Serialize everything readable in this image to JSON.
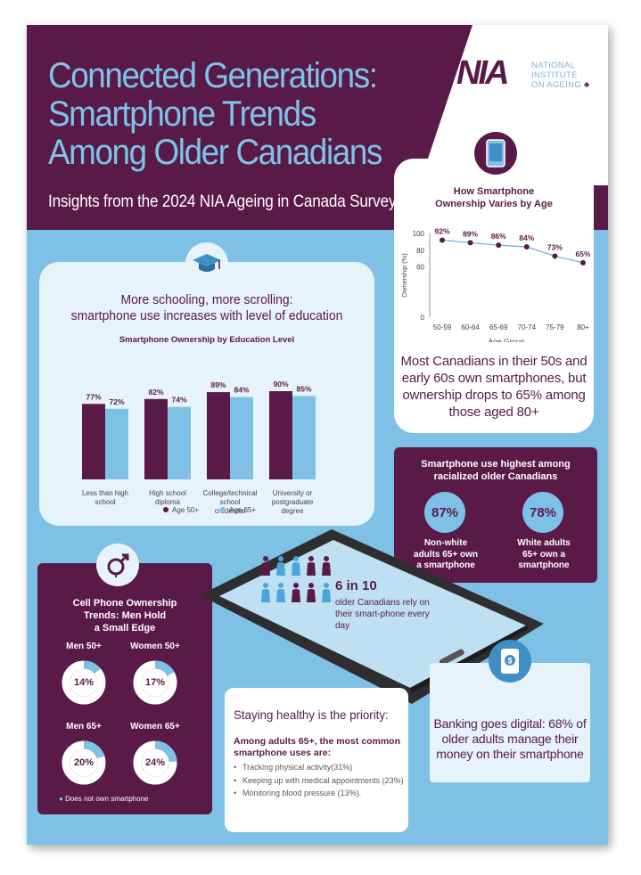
{
  "header": {
    "title_lines": [
      "Connected Generations:",
      "Smartphone Trends",
      "Among Older Canadians"
    ],
    "subtitle": "Insights from the 2024 NIA Ageing in Canada Survey",
    "logo_mark": "NIA",
    "logo_text_lines": [
      "NATIONAL",
      "INSTITUTE",
      "ON AGEING"
    ]
  },
  "colors": {
    "purple": "#5a1a48",
    "light_blue": "#7fc1e6",
    "accent_blue": "#3f8ec5",
    "title_blue": "#7cc4ea"
  },
  "age_section": {
    "icon": "smartphone-icon",
    "title_lines": [
      "How Smartphone",
      "Ownership Varies by Age"
    ],
    "summary": "Most Canadians in their 50s and early 60s own smartphones, but ownership drops to 65% among those aged 80+"
  },
  "education_section": {
    "icon": "graduation-cap-icon",
    "heading_lines": [
      "More schooling, more scrolling:",
      "smartphone use increases with level of education"
    ],
    "chart_title": "Smartphone Ownership by Education Level"
  },
  "chart_data": [
    {
      "type": "line",
      "title": "How Smartphone Ownership Varies by Age",
      "xlabel": "Age Group",
      "ylabel": "Ownership (%)",
      "categories": [
        "50-59",
        "60-64",
        "65-69",
        "70-74",
        "75-79",
        "80+"
      ],
      "values": [
        92,
        89,
        86,
        84,
        73,
        65
      ],
      "data_labels": [
        "92%",
        "89%",
        "86%",
        "84%",
        "73%",
        "65%"
      ],
      "yticks": [
        0,
        60,
        80,
        100
      ],
      "ylim": [
        0,
        100
      ]
    },
    {
      "type": "bar",
      "title": "Smartphone Ownership by Education Level",
      "categories": [
        "Less than high school",
        "High school diploma",
        "College/technical school credential",
        "University or postgraduate degree"
      ],
      "series": [
        {
          "name": "Age 50+",
          "values": [
            77,
            82,
            89,
            90
          ],
          "labels": [
            "77%",
            "82%",
            "89%",
            "90%"
          ],
          "color": "#5a1a48"
        },
        {
          "name": "Age 65+",
          "values": [
            72,
            74,
            84,
            85
          ],
          "labels": [
            "72%",
            "74%",
            "84%",
            "85%"
          ],
          "color": "#7fc1e6"
        }
      ],
      "ylim": [
        0,
        100
      ],
      "legend": "bottom"
    },
    {
      "type": "pie",
      "title": "Cell Phone Ownership Trends: Men Hold a Small Edge",
      "groups": [
        {
          "label": "Men 50+",
          "value": 14,
          "text": "14%"
        },
        {
          "label": "Women 50+",
          "value": 17,
          "text": "17%"
        },
        {
          "label": "Men 65+",
          "value": 20,
          "text": "20%"
        },
        {
          "label": "Women 65+",
          "value": 24,
          "text": "24%"
        }
      ],
      "legend_label": "Does not own smartphone"
    }
  ],
  "racialized_section": {
    "title_lines": [
      "Smartphone use highest among",
      "racialized older Canadians"
    ],
    "stats": [
      {
        "value": "87%",
        "label_lines": [
          "Non-white",
          "adults 65+ own",
          "a smartphone"
        ]
      },
      {
        "value": "78%",
        "label_lines": [
          "White adults",
          "65+ own a",
          "smartphone"
        ]
      }
    ]
  },
  "gender_section": {
    "icon": "gender-icon",
    "title_lines": [
      "Cell Phone Ownership",
      "Trends: Men Hold",
      "a Small Edge"
    ],
    "legend": "Does not own smartphone"
  },
  "phone_section": {
    "stat_big": "6 in 10",
    "stat_text": "older Canadians rely on their smart-phone every day",
    "people_rows": [
      [
        "purple",
        "blue",
        "blue",
        "purple",
        "purple"
      ],
      [
        "blue",
        "blue",
        "purple",
        "purple",
        "blue"
      ]
    ]
  },
  "health_section": {
    "title": "Staying healthy is the priority:",
    "intro": "Among adults 65+, the most common smartphone uses are:",
    "items": [
      "Tracking physical activity(31%)",
      "Keeping up with medical appointments (23%)",
      "Monitoring blood pressure (13%)."
    ]
  },
  "banking_section": {
    "icon": "money-phone-icon",
    "text": "Banking goes digital: 68% of older adults manage their money on their smartphone"
  }
}
